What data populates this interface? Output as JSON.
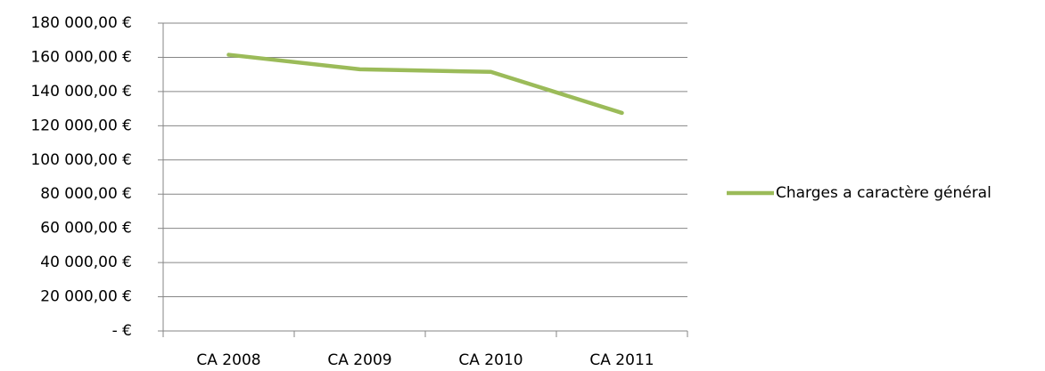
{
  "chart_data": {
    "type": "line",
    "categories": [
      "CA 2008",
      "CA 2009",
      "CA 2010",
      "CA 2011"
    ],
    "series": [
      {
        "name": "Charges a caractère général",
        "color": "#9bbb59",
        "values": [
          161500,
          153000,
          151500,
          127500
        ]
      }
    ],
    "ylim": [
      0,
      180000
    ],
    "yticks": [
      {
        "value": 0,
        "label": "-  €"
      },
      {
        "value": 20000,
        "label": "20 000,00 €"
      },
      {
        "value": 40000,
        "label": "40 000,00 €"
      },
      {
        "value": 60000,
        "label": "60 000,00 €"
      },
      {
        "value": 80000,
        "label": "80 000,00 €"
      },
      {
        "value": 100000,
        "label": "100 000,00 €"
      },
      {
        "value": 120000,
        "label": "120 000,00 €"
      },
      {
        "value": 140000,
        "label": "140 000,00 €"
      },
      {
        "value": 160000,
        "label": "160 000,00 €"
      },
      {
        "value": 180000,
        "label": "180 000,00 €"
      }
    ],
    "grid": true,
    "legend": "right"
  }
}
